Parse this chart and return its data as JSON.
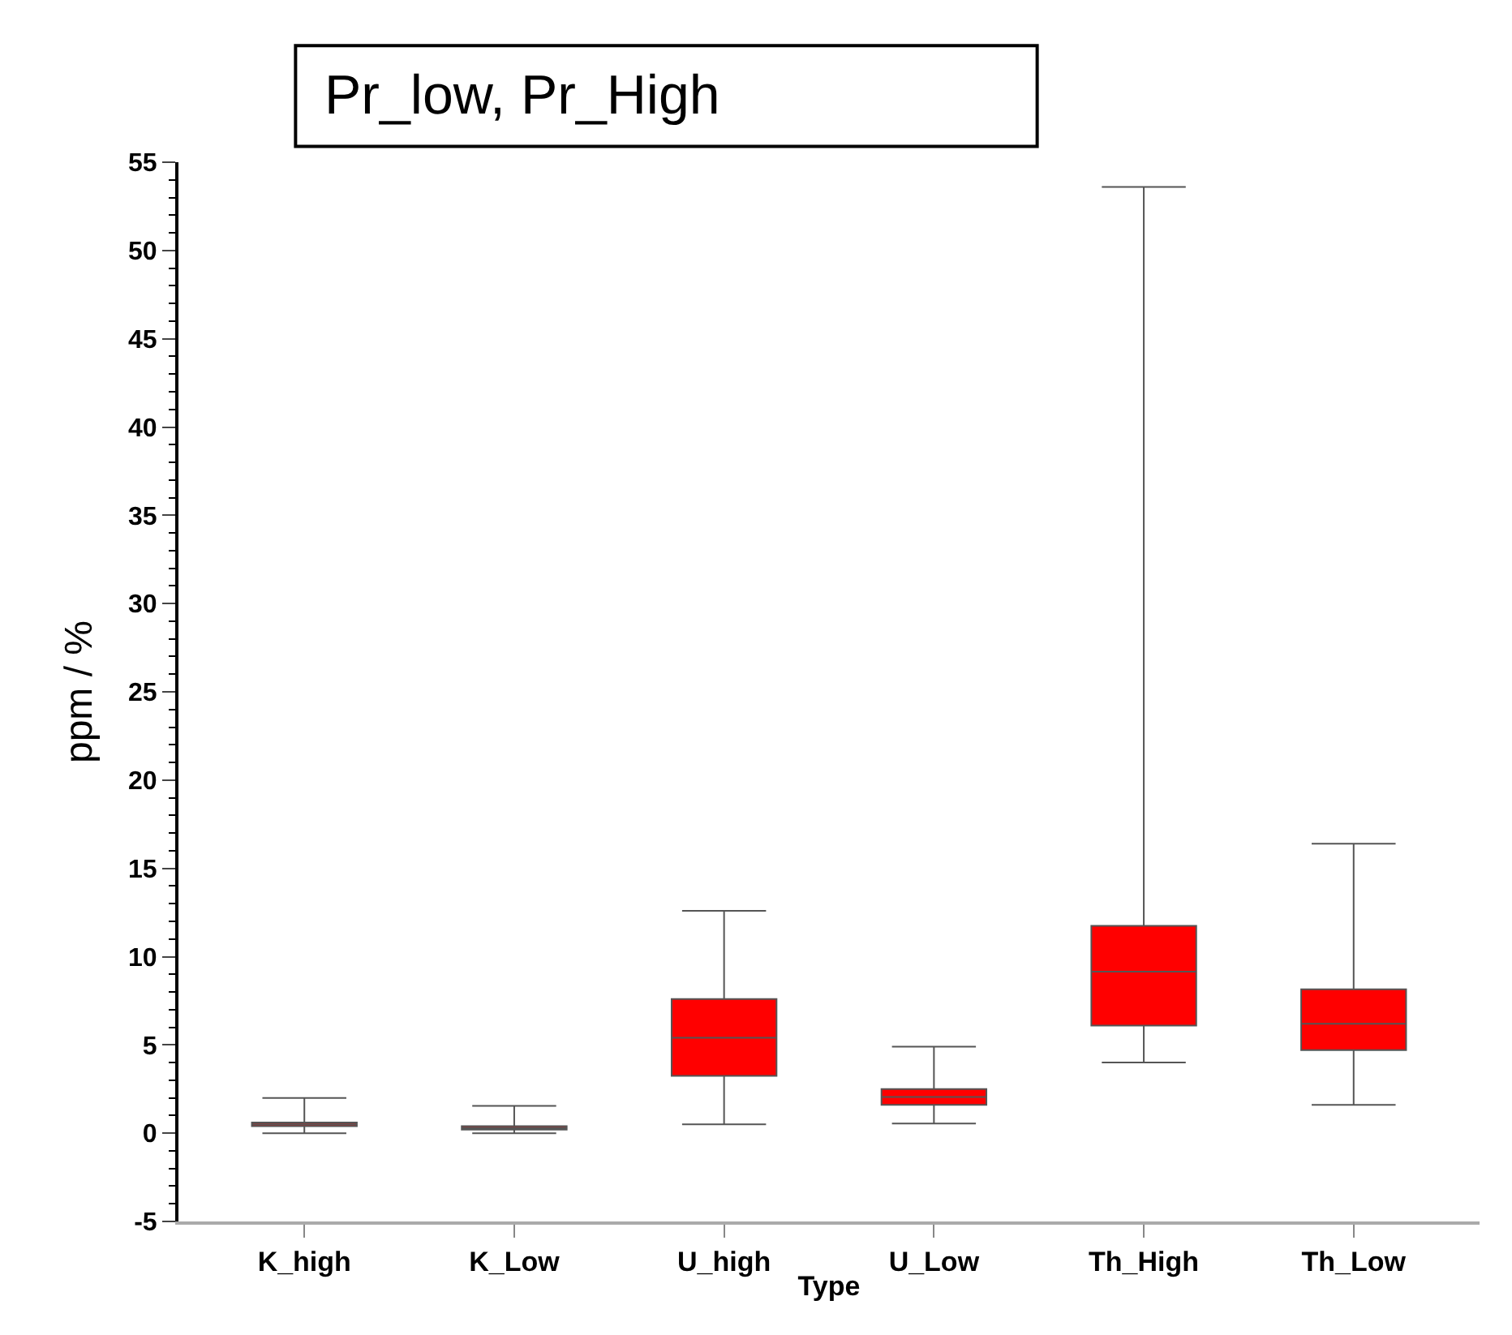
{
  "chart_data": {
    "type": "box",
    "title": "Pr_low, Pr_High",
    "xlabel": "Type",
    "ylabel": "ppm / %",
    "categories": [
      "K_high",
      "K_Low",
      "U_high",
      "U_Low",
      "Th_High",
      "Th_Low"
    ],
    "boxes": [
      {
        "low": 0,
        "q1": 0.4,
        "median": 0.5,
        "q3": 0.6,
        "high": 2.0
      },
      {
        "low": 0,
        "q1": 0.2,
        "median": 0.3,
        "q3": 0.4,
        "high": 1.55
      },
      {
        "low": 0.5,
        "q1": 3.25,
        "median": 5.4,
        "q3": 7.6,
        "high": 12.6
      },
      {
        "low": 0.55,
        "q1": 1.6,
        "median": 2.05,
        "q3": 2.5,
        "high": 4.9
      },
      {
        "low": 4.0,
        "q1": 6.1,
        "median": 9.15,
        "q3": 11.75,
        "high": 53.6
      },
      {
        "low": 1.6,
        "q1": 4.7,
        "median": 6.2,
        "q3": 8.15,
        "high": 16.4
      }
    ],
    "color": "#ff0000",
    "ylim": [
      -5,
      55
    ],
    "yticks": [
      -5,
      0,
      5,
      10,
      15,
      20,
      25,
      30,
      35,
      40,
      45,
      50,
      55
    ]
  }
}
